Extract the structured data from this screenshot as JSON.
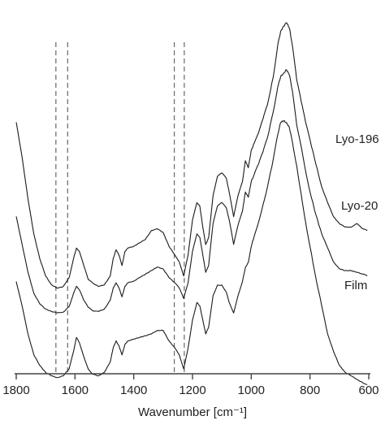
{
  "chart_data": {
    "type": "line",
    "title": "",
    "xlabel": "Wavenumber [cm⁻¹]",
    "ylabel": "",
    "x_reversed": true,
    "xlim": [
      1800,
      600
    ],
    "xticks": [
      1800,
      1600,
      1400,
      1200,
      1000,
      800,
      600
    ],
    "y_axis_shown": false,
    "grid": false,
    "reference_lines_cm1": [
      1665,
      1625,
      1262,
      1228
    ],
    "series": [
      {
        "name": "Lyo-196",
        "points": [
          [
            1800,
            35
          ],
          [
            1780,
            45
          ],
          [
            1760,
            57
          ],
          [
            1740,
            67
          ],
          [
            1720,
            74
          ],
          [
            1700,
            79
          ],
          [
            1680,
            81.5
          ],
          [
            1660,
            82.5
          ],
          [
            1640,
            82
          ],
          [
            1620,
            79.5
          ],
          [
            1605,
            74
          ],
          [
            1595,
            71
          ],
          [
            1585,
            72
          ],
          [
            1570,
            76
          ],
          [
            1555,
            80
          ],
          [
            1540,
            81
          ],
          [
            1520,
            82
          ],
          [
            1500,
            81.5
          ],
          [
            1480,
            79
          ],
          [
            1470,
            74
          ],
          [
            1460,
            71.5
          ],
          [
            1450,
            73
          ],
          [
            1440,
            76
          ],
          [
            1430,
            72
          ],
          [
            1420,
            71
          ],
          [
            1400,
            70.5
          ],
          [
            1380,
            69.5
          ],
          [
            1360,
            68.5
          ],
          [
            1340,
            66
          ],
          [
            1320,
            65.5
          ],
          [
            1300,
            66.5
          ],
          [
            1280,
            70.5
          ],
          [
            1260,
            73
          ],
          [
            1245,
            75
          ],
          [
            1230,
            79
          ],
          [
            1215,
            73
          ],
          [
            1200,
            63
          ],
          [
            1185,
            58
          ],
          [
            1175,
            59
          ],
          [
            1165,
            65
          ],
          [
            1155,
            70
          ],
          [
            1145,
            68
          ],
          [
            1130,
            56
          ],
          [
            1115,
            50.5
          ],
          [
            1100,
            49.5
          ],
          [
            1085,
            51
          ],
          [
            1075,
            55
          ],
          [
            1060,
            62
          ],
          [
            1045,
            56
          ],
          [
            1030,
            52
          ],
          [
            1020,
            46
          ],
          [
            1010,
            48
          ],
          [
            1000,
            43
          ],
          [
            990,
            41
          ],
          [
            975,
            38
          ],
          [
            960,
            34
          ],
          [
            945,
            30
          ],
          [
            925,
            22
          ],
          [
            910,
            13
          ],
          [
            900,
            9
          ],
          [
            890,
            7.5
          ],
          [
            880,
            6.5
          ],
          [
            870,
            8
          ],
          [
            860,
            13
          ],
          [
            845,
            23
          ],
          [
            830,
            29
          ],
          [
            815,
            35
          ],
          [
            800,
            40
          ],
          [
            780,
            47
          ],
          [
            760,
            53.5
          ],
          [
            740,
            58
          ],
          [
            720,
            62
          ],
          [
            700,
            64
          ],
          [
            680,
            65
          ],
          [
            660,
            65
          ],
          [
            640,
            64
          ],
          [
            620,
            65.5
          ],
          [
            605,
            66
          ]
        ]
      },
      {
        "name": "Lyo-20",
        "points": [
          [
            1800,
            48
          ],
          [
            1780,
            56
          ],
          [
            1760,
            64
          ],
          [
            1740,
            70
          ],
          [
            1720,
            73
          ],
          [
            1700,
            74.5
          ],
          [
            1680,
            75.2
          ],
          [
            1660,
            75.6
          ],
          [
            1640,
            75.4
          ],
          [
            1620,
            73.8
          ],
          [
            1605,
            70
          ],
          [
            1595,
            68
          ],
          [
            1585,
            69
          ],
          [
            1570,
            72
          ],
          [
            1555,
            74
          ],
          [
            1540,
            75
          ],
          [
            1520,
            75.2
          ],
          [
            1500,
            74.5
          ],
          [
            1480,
            72
          ],
          [
            1470,
            68.5
          ],
          [
            1460,
            67
          ],
          [
            1450,
            68.5
          ],
          [
            1440,
            71
          ],
          [
            1430,
            68
          ],
          [
            1420,
            67
          ],
          [
            1400,
            66.5
          ],
          [
            1380,
            65.5
          ],
          [
            1360,
            64.5
          ],
          [
            1340,
            63.5
          ],
          [
            1320,
            62.5
          ],
          [
            1300,
            63
          ],
          [
            1280,
            65.5
          ],
          [
            1260,
            67
          ],
          [
            1245,
            68.5
          ],
          [
            1230,
            71.5
          ],
          [
            1215,
            67
          ],
          [
            1200,
            58
          ],
          [
            1185,
            53
          ],
          [
            1175,
            54
          ],
          [
            1165,
            59
          ],
          [
            1155,
            64
          ],
          [
            1145,
            62
          ],
          [
            1130,
            50
          ],
          [
            1115,
            45
          ],
          [
            1100,
            44
          ],
          [
            1085,
            45.5
          ],
          [
            1075,
            49
          ],
          [
            1060,
            56
          ],
          [
            1045,
            50.5
          ],
          [
            1030,
            46.5
          ],
          [
            1020,
            41
          ],
          [
            1010,
            42.5
          ],
          [
            1000,
            38
          ],
          [
            990,
            36
          ],
          [
            975,
            33
          ],
          [
            960,
            29.5
          ],
          [
            945,
            25.5
          ],
          [
            925,
            18
          ],
          [
            910,
            11
          ],
          [
            900,
            8
          ],
          [
            890,
            7
          ],
          [
            880,
            6
          ],
          [
            870,
            7.5
          ],
          [
            860,
            12
          ],
          [
            845,
            22
          ],
          [
            830,
            28
          ],
          [
            815,
            35
          ],
          [
            800,
            41
          ],
          [
            780,
            47.5
          ],
          [
            760,
            53
          ],
          [
            740,
            57
          ],
          [
            720,
            61
          ],
          [
            700,
            63
          ],
          [
            680,
            63.5
          ],
          [
            660,
            63.5
          ],
          [
            640,
            64
          ],
          [
            620,
            64.5
          ],
          [
            605,
            65
          ]
        ]
      },
      {
        "name": "Film",
        "points": [
          [
            1800,
            55
          ],
          [
            1780,
            62
          ],
          [
            1760,
            70
          ],
          [
            1740,
            76
          ],
          [
            1720,
            79
          ],
          [
            1700,
            81
          ],
          [
            1680,
            82
          ],
          [
            1660,
            82.5
          ],
          [
            1640,
            82
          ],
          [
            1620,
            80
          ],
          [
            1605,
            75
          ],
          [
            1595,
            71
          ],
          [
            1585,
            72.5
          ],
          [
            1570,
            76.5
          ],
          [
            1555,
            80
          ],
          [
            1540,
            81.5
          ],
          [
            1520,
            82
          ],
          [
            1500,
            81
          ],
          [
            1480,
            78
          ],
          [
            1470,
            74
          ],
          [
            1460,
            72
          ],
          [
            1450,
            73.5
          ],
          [
            1440,
            76
          ],
          [
            1430,
            73
          ],
          [
            1420,
            72
          ],
          [
            1400,
            71.5
          ],
          [
            1380,
            71
          ],
          [
            1360,
            70.5
          ],
          [
            1340,
            70
          ],
          [
            1320,
            69
          ],
          [
            1300,
            69
          ],
          [
            1280,
            72
          ],
          [
            1260,
            74
          ],
          [
            1245,
            76
          ],
          [
            1230,
            80
          ],
          [
            1215,
            74
          ],
          [
            1200,
            66
          ],
          [
            1185,
            61
          ],
          [
            1175,
            62
          ],
          [
            1165,
            66
          ],
          [
            1155,
            70
          ],
          [
            1145,
            68
          ],
          [
            1130,
            59
          ],
          [
            1115,
            56
          ],
          [
            1100,
            56
          ],
          [
            1085,
            58
          ],
          [
            1075,
            61
          ],
          [
            1060,
            64
          ],
          [
            1045,
            59
          ],
          [
            1030,
            55
          ],
          [
            1020,
            51
          ],
          [
            1010,
            49.5
          ],
          [
            1000,
            45
          ],
          [
            990,
            42
          ],
          [
            975,
            38
          ],
          [
            960,
            33
          ],
          [
            945,
            28
          ],
          [
            925,
            20
          ],
          [
            910,
            13
          ],
          [
            900,
            9.5
          ],
          [
            890,
            9
          ],
          [
            880,
            9.5
          ],
          [
            870,
            11
          ],
          [
            860,
            15
          ],
          [
            845,
            22
          ],
          [
            830,
            30
          ],
          [
            815,
            38
          ],
          [
            800,
            45
          ],
          [
            780,
            54
          ],
          [
            760,
            62
          ],
          [
            740,
            70
          ],
          [
            720,
            75
          ],
          [
            700,
            79
          ],
          [
            680,
            81
          ],
          [
            660,
            82
          ],
          [
            640,
            83
          ],
          [
            620,
            84
          ],
          [
            605,
            84.5
          ]
        ]
      }
    ]
  }
}
